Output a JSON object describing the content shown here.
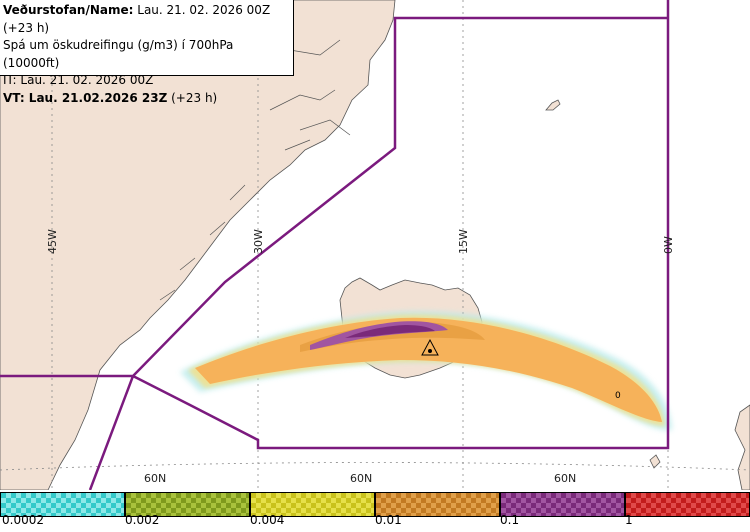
{
  "header": {
    "line1_bold": "Veðurstofan/Name:",
    "line1_rest": " Lau. 21. 02. 2026 00Z (+23 h)",
    "line2": "Spá um öskudreifingu (g/m3) í 700hPa (10000ft)",
    "line3": "IT: Lau. 21. 02. 2026 00Z",
    "line4_bold": "VT: Lau. 21.02.2026 23Z",
    "line4_rest": " (+23 h)"
  },
  "map": {
    "longitude_labels": [
      "45W",
      "30W",
      "15W",
      "0W"
    ],
    "latitude_labels": [
      "60N",
      "60N",
      "60N"
    ],
    "contour_label": "0",
    "colors": {
      "land": "#f2e1d4",
      "sea": "#ffffff",
      "boundary": "#7b1a7e",
      "grid": "#8a8a8a"
    }
  },
  "legend": {
    "ticks": [
      "0.0002",
      "0.002",
      "0.004",
      "0.01",
      "0.1",
      "1"
    ],
    "bins": [
      {
        "color_a": "#33c9c9",
        "color_b": "#8de8e8"
      },
      {
        "color_a": "#7f9a1c",
        "color_b": "#a9c23c"
      },
      {
        "color_a": "#c9c21c",
        "color_b": "#e6e04a"
      },
      {
        "color_a": "#c27a22",
        "color_b": "#e0a04a"
      },
      {
        "color_a": "#7a2a7a",
        "color_b": "#a155a1"
      },
      {
        "color_a": "#c21c1c",
        "color_b": "#e04a4a"
      }
    ]
  }
}
